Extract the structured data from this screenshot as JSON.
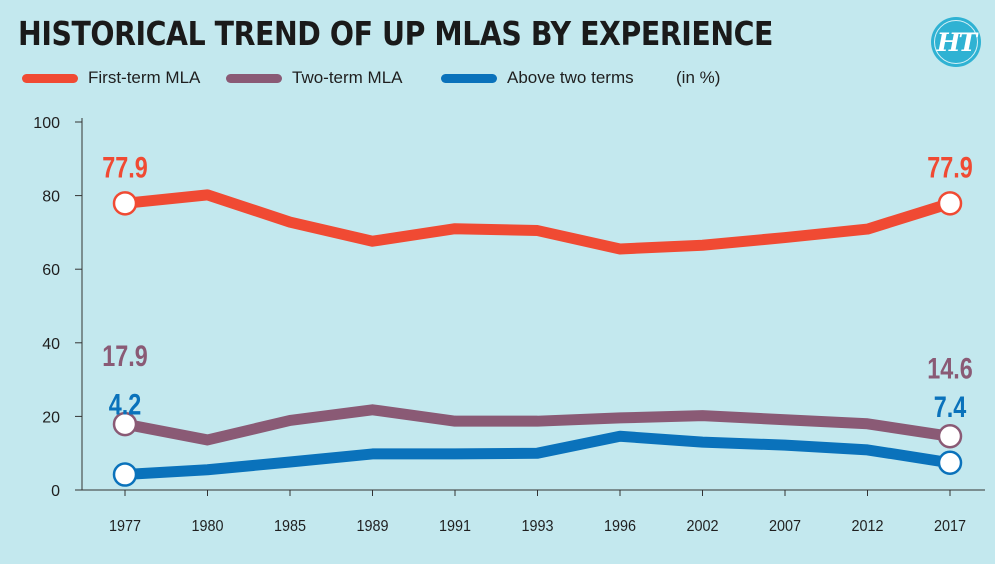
{
  "header": {
    "title": "HISTORICAL TREND OF UP MLAS BY EXPERIENCE",
    "logo_text": "HT"
  },
  "legend": {
    "unit": "(in %)"
  },
  "colors": {
    "background": "#c3e8ee",
    "first_term": "#f04a33",
    "two_term": "#8a5a75",
    "above_two": "#0a72bb",
    "logo": "#2fb2d3"
  },
  "chart_data": {
    "type": "line",
    "title": "HISTORICAL TREND OF UP MLAS BY EXPERIENCE",
    "xlabel": "",
    "ylabel": "(in %)",
    "categories": [
      "1977",
      "1980",
      "1985",
      "1989",
      "1991",
      "1993",
      "1996",
      "2002",
      "2007",
      "2012",
      "2017"
    ],
    "ylim": [
      0,
      100
    ],
    "yticks": [
      0,
      20,
      40,
      60,
      80,
      100
    ],
    "grid": false,
    "series": [
      {
        "name": "First-term MLA",
        "color": "#f04a33",
        "values": [
          77.9,
          80.2,
          72.8,
          67.6,
          71.0,
          70.5,
          65.5,
          66.5,
          68.6,
          70.9,
          77.9
        ],
        "start_label": "77.9",
        "end_label": "77.9"
      },
      {
        "name": "Two-term MLA",
        "color": "#8a5a75",
        "values": [
          17.9,
          13.6,
          18.9,
          21.8,
          18.7,
          18.7,
          19.6,
          20.2,
          19.1,
          18.0,
          14.6
        ],
        "start_label": "17.9",
        "end_label": "14.6"
      },
      {
        "name": "Above two terms",
        "color": "#0a72bb",
        "values": [
          4.2,
          5.5,
          7.6,
          9.8,
          9.8,
          10.0,
          14.6,
          13.0,
          12.2,
          10.9,
          7.4
        ],
        "start_label": "4.2",
        "end_label": "7.4"
      }
    ]
  }
}
